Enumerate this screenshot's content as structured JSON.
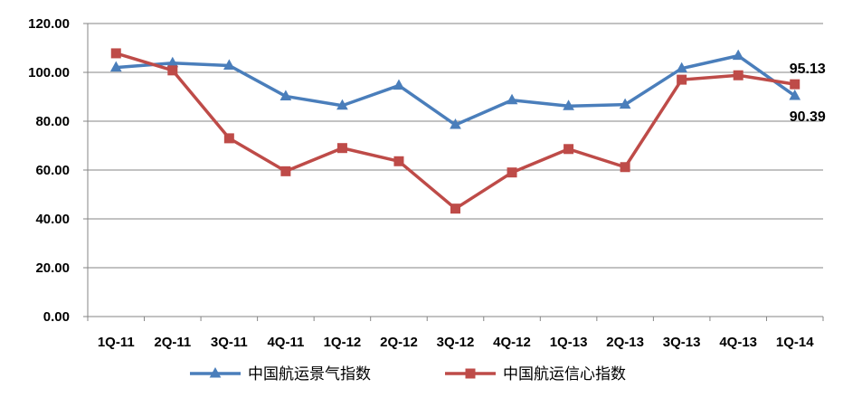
{
  "chart_data": {
    "type": "line",
    "categories": [
      "1Q-11",
      "2Q-11",
      "3Q-11",
      "4Q-11",
      "1Q-12",
      "2Q-12",
      "3Q-12",
      "4Q-12",
      "1Q-13",
      "2Q-13",
      "3Q-13",
      "4Q-13",
      "1Q-14"
    ],
    "ylim": [
      0,
      120
    ],
    "yticks": [
      "0.00",
      "20.00",
      "40.00",
      "60.00",
      "80.00",
      "100.00",
      "120.00"
    ],
    "grid": true,
    "legend_position": "bottom",
    "series": [
      {
        "name": "中国航运景气指数",
        "color": "#4A7EBB",
        "marker": "triangle",
        "values": [
          102.0,
          103.8,
          102.8,
          90.2,
          86.4,
          94.6,
          78.5,
          88.6,
          86.2,
          86.8,
          101.6,
          106.8,
          90.39
        ]
      },
      {
        "name": "中国航运信心指数",
        "color": "#BE4B48",
        "marker": "square",
        "values": [
          107.8,
          100.8,
          73.0,
          59.5,
          69.0,
          63.6,
          44.2,
          59.0,
          68.6,
          61.2,
          97.0,
          98.8,
          95.13
        ]
      }
    ],
    "data_labels": [
      {
        "series": 1,
        "index": 12,
        "text": "95.13"
      },
      {
        "series": 0,
        "index": 12,
        "text": "90.39"
      }
    ]
  }
}
